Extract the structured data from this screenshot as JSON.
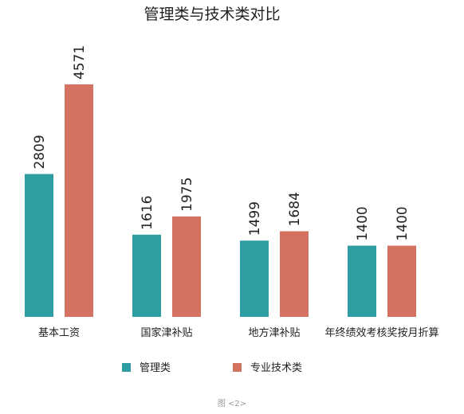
{
  "chart_data": {
    "type": "bar",
    "title": "管理类与技术类对比",
    "categories": [
      "基本工资",
      "国家津补贴",
      "地方津补贴",
      "年终绩效考核奖按月折算"
    ],
    "series": [
      {
        "name": "管理类",
        "values": [
          2809,
          1616,
          1499,
          1400
        ],
        "color": "#2e9ea3"
      },
      {
        "name": "专业技术类",
        "values": [
          4571,
          1975,
          1684,
          1400
        ],
        "color": "#d47261"
      }
    ],
    "xlabel": "",
    "ylabel": "",
    "ylim": [
      0,
      4571
    ],
    "grid": false,
    "legend": "bottom-center",
    "data_labels": true
  },
  "caption": "图 <2>"
}
